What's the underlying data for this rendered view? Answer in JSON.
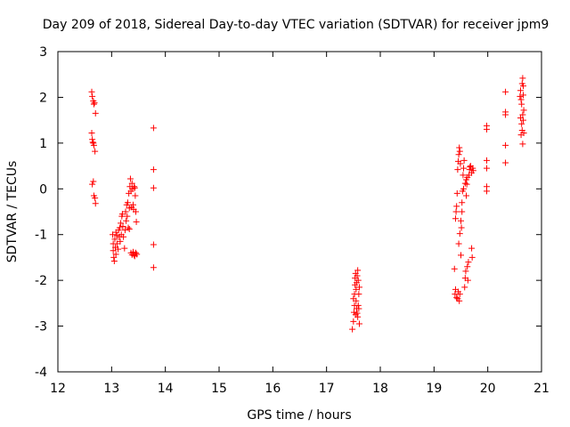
{
  "chart_data": {
    "type": "scatter",
    "title": "Day 209 of 2018, Sidereal Day-to-day VTEC variation (SDTVAR) for receiver jpm9",
    "xlabel": "GPS time / hours",
    "ylabel": "SDTVAR / TECUs",
    "xlim": [
      12,
      21
    ],
    "ylim": [
      -4,
      3
    ],
    "xticks": [
      12,
      13,
      14,
      15,
      16,
      17,
      18,
      19,
      20,
      21
    ],
    "yticks": [
      -4,
      -3,
      -2,
      -1,
      0,
      1,
      2,
      3
    ],
    "xtick_labels": [
      "12",
      "13",
      "14",
      "15",
      "16",
      "17",
      "18",
      "19",
      "20",
      "21"
    ],
    "ytick_labels": [
      "-4",
      "-3",
      "-2",
      "-1",
      "0",
      "1",
      "2",
      "3"
    ],
    "marker": "+",
    "grid": false,
    "color": "#ff0000",
    "series": [
      {
        "name": "SDTVAR",
        "points": [
          [
            12.63,
            2.12
          ],
          [
            12.64,
            2.02
          ],
          [
            12.66,
            1.92
          ],
          [
            12.67,
            1.85
          ],
          [
            12.68,
            1.88
          ],
          [
            12.7,
            1.65
          ],
          [
            12.63,
            1.22
          ],
          [
            12.64,
            1.08
          ],
          [
            12.65,
            1.02
          ],
          [
            12.66,
            1.0
          ],
          [
            12.67,
            0.95
          ],
          [
            12.69,
            0.82
          ],
          [
            12.64,
            0.1
          ],
          [
            12.66,
            0.16
          ],
          [
            12.67,
            -0.15
          ],
          [
            12.69,
            -0.2
          ],
          [
            12.7,
            -0.32
          ],
          [
            13.02,
            -1.0
          ],
          [
            13.03,
            -1.2
          ],
          [
            13.03,
            -1.35
          ],
          [
            13.04,
            -1.5
          ],
          [
            13.05,
            -1.58
          ],
          [
            13.06,
            -1.1
          ],
          [
            13.07,
            -1.28
          ],
          [
            13.08,
            -1.43
          ],
          [
            13.08,
            -0.95
          ],
          [
            13.1,
            -1.02
          ],
          [
            13.1,
            -1.2
          ],
          [
            13.12,
            -1.32
          ],
          [
            13.13,
            -0.9
          ],
          [
            13.14,
            -1.05
          ],
          [
            13.15,
            -0.85
          ],
          [
            13.16,
            -1.15
          ],
          [
            13.17,
            -0.75
          ],
          [
            13.18,
            -1.0
          ],
          [
            13.19,
            -0.6
          ],
          [
            13.2,
            -0.55
          ],
          [
            13.21,
            -0.82
          ],
          [
            13.22,
            -1.05
          ],
          [
            13.24,
            -1.3
          ],
          [
            13.25,
            -0.9
          ],
          [
            13.26,
            -0.5
          ],
          [
            13.27,
            -0.7
          ],
          [
            13.28,
            -0.35
          ],
          [
            13.29,
            -0.6
          ],
          [
            13.3,
            -0.3
          ],
          [
            13.31,
            -0.85
          ],
          [
            13.32,
            -0.1
          ],
          [
            13.33,
            -0.42
          ],
          [
            13.34,
            0.05
          ],
          [
            13.35,
            0.22
          ],
          [
            13.36,
            -0.05
          ],
          [
            13.37,
            -0.4
          ],
          [
            13.38,
            0.12
          ],
          [
            13.39,
            0.0
          ],
          [
            13.4,
            -0.35
          ],
          [
            13.41,
            -0.45
          ],
          [
            13.42,
            0.05
          ],
          [
            13.43,
            0.02
          ],
          [
            13.44,
            -0.15
          ],
          [
            13.45,
            -0.5
          ],
          [
            13.46,
            -0.72
          ],
          [
            13.33,
            -0.88
          ],
          [
            13.36,
            -1.4
          ],
          [
            13.38,
            -1.44
          ],
          [
            13.4,
            -1.38
          ],
          [
            13.42,
            -1.45
          ],
          [
            13.43,
            -1.47
          ],
          [
            13.45,
            -1.4
          ],
          [
            13.47,
            -1.43
          ],
          [
            13.78,
            1.33
          ],
          [
            13.78,
            0.42
          ],
          [
            13.78,
            0.02
          ],
          [
            13.78,
            -1.22
          ],
          [
            13.78,
            -1.72
          ],
          [
            17.48,
            -3.07
          ],
          [
            17.5,
            -2.9
          ],
          [
            17.51,
            -2.7
          ],
          [
            17.52,
            -2.55
          ],
          [
            17.5,
            -2.4
          ],
          [
            17.52,
            -2.3
          ],
          [
            17.53,
            -2.1
          ],
          [
            17.53,
            -1.95
          ],
          [
            17.54,
            -1.85
          ],
          [
            17.55,
            -2.2
          ],
          [
            17.56,
            -2.05
          ],
          [
            17.57,
            -1.9
          ],
          [
            17.58,
            -1.78
          ],
          [
            17.59,
            -2.0
          ],
          [
            17.6,
            -2.3
          ],
          [
            17.55,
            -2.45
          ],
          [
            17.56,
            -2.62
          ],
          [
            17.57,
            -2.72
          ],
          [
            17.58,
            -2.8
          ],
          [
            17.6,
            -2.62
          ],
          [
            17.61,
            -2.95
          ],
          [
            17.54,
            -2.75
          ],
          [
            17.59,
            -2.55
          ],
          [
            17.61,
            -2.15
          ],
          [
            19.38,
            -1.75
          ],
          [
            19.39,
            -2.3
          ],
          [
            19.4,
            -2.2
          ],
          [
            19.42,
            -2.38
          ],
          [
            19.44,
            -2.4
          ],
          [
            19.45,
            -2.25
          ],
          [
            19.47,
            -2.45
          ],
          [
            19.48,
            -2.3
          ],
          [
            19.4,
            -0.65
          ],
          [
            19.41,
            -0.5
          ],
          [
            19.42,
            -0.38
          ],
          [
            19.43,
            -0.1
          ],
          [
            19.44,
            0.42
          ],
          [
            19.45,
            0.6
          ],
          [
            19.46,
            0.75
          ],
          [
            19.47,
            0.9
          ],
          [
            19.48,
            0.82
          ],
          [
            19.49,
            0.55
          ],
          [
            19.5,
            -1.45
          ],
          [
            19.51,
            -0.85
          ],
          [
            19.52,
            -0.5
          ],
          [
            19.53,
            -0.05
          ],
          [
            19.54,
            0.3
          ],
          [
            19.55,
            0.45
          ],
          [
            19.56,
            0.62
          ],
          [
            19.57,
            -2.15
          ],
          [
            19.58,
            -1.95
          ],
          [
            19.59,
            -1.8
          ],
          [
            19.6,
            -0.15
          ],
          [
            19.61,
            0.1
          ],
          [
            19.62,
            0.25
          ],
          [
            19.63,
            -2.0
          ],
          [
            19.64,
            -1.6
          ],
          [
            19.65,
            0.3
          ],
          [
            19.66,
            0.42
          ],
          [
            19.68,
            0.5
          ],
          [
            19.7,
            0.35
          ],
          [
            19.7,
            -1.3
          ],
          [
            19.71,
            -1.5
          ],
          [
            19.72,
            0.45
          ],
          [
            19.73,
            0.4
          ],
          [
            19.46,
            -1.2
          ],
          [
            19.48,
            -0.98
          ],
          [
            19.5,
            -0.7
          ],
          [
            19.52,
            -0.3
          ],
          [
            19.55,
            0.0
          ],
          [
            19.58,
            0.12
          ],
          [
            19.6,
            0.2
          ],
          [
            19.62,
            -1.7
          ],
          [
            19.67,
            0.48
          ],
          [
            19.98,
            1.38
          ],
          [
            19.98,
            1.3
          ],
          [
            19.98,
            0.62
          ],
          [
            19.98,
            0.45
          ],
          [
            19.98,
            0.05
          ],
          [
            19.98,
            -0.05
          ],
          [
            20.33,
            2.12
          ],
          [
            20.33,
            1.68
          ],
          [
            20.33,
            1.62
          ],
          [
            20.33,
            0.95
          ],
          [
            20.33,
            0.57
          ],
          [
            20.6,
            2.02
          ],
          [
            20.61,
            2.15
          ],
          [
            20.62,
            1.95
          ],
          [
            20.63,
            1.42
          ],
          [
            20.64,
            1.28
          ],
          [
            20.65,
            1.62
          ],
          [
            20.66,
            1.5
          ],
          [
            20.62,
            1.18
          ],
          [
            20.64,
            2.3
          ],
          [
            20.65,
            2.42
          ],
          [
            20.66,
            2.05
          ],
          [
            20.67,
            1.72
          ],
          [
            20.67,
            1.22
          ],
          [
            20.65,
            0.98
          ],
          [
            20.63,
            1.85
          ],
          [
            20.61,
            1.55
          ],
          [
            20.66,
            2.25
          ]
        ]
      }
    ]
  }
}
